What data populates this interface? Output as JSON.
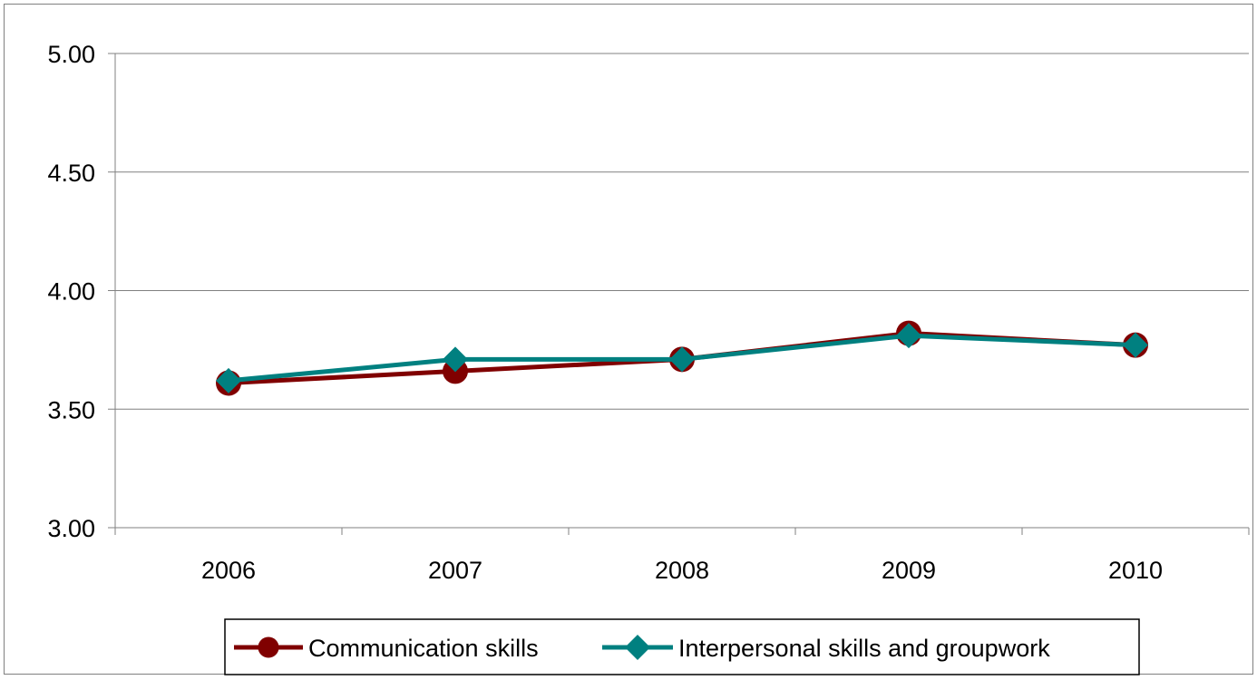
{
  "chart_data": {
    "type": "line",
    "categories": [
      "2006",
      "2007",
      "2008",
      "2009",
      "2010"
    ],
    "ylim": [
      3.0,
      5.0
    ],
    "yticks": [
      "3.00",
      "3.50",
      "4.00",
      "4.50",
      "5.00"
    ],
    "grid": true,
    "legend_position": "bottom",
    "series": [
      {
        "name": "Communication skills",
        "values": [
          3.61,
          3.66,
          3.71,
          3.82,
          3.77
        ],
        "color": "#800000",
        "marker": "circle"
      },
      {
        "name": "Interpersonal skills and groupwork",
        "values": [
          3.62,
          3.71,
          3.71,
          3.81,
          3.77
        ],
        "color": "#008080",
        "marker": "diamond"
      }
    ]
  }
}
